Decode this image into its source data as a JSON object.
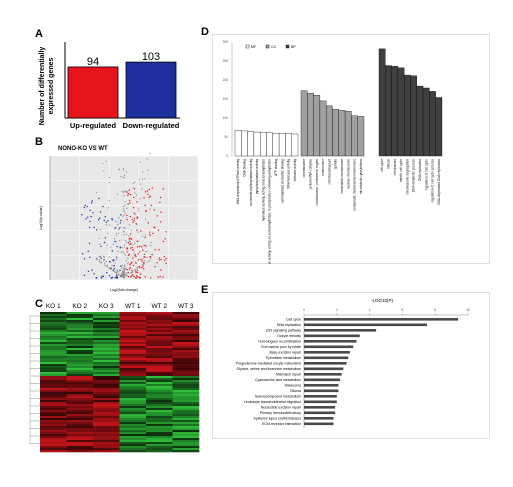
{
  "panels": {
    "a": {
      "label": "A"
    },
    "b": {
      "label": "B",
      "title": "NONO-KO VS WT"
    },
    "c": {
      "label": "C"
    },
    "d": {
      "label": "D"
    },
    "e": {
      "label": "E"
    }
  },
  "colors": {
    "up_red": "#e8141b",
    "down_blue": "#1e2fa0",
    "heat_green": "#2fbf3a",
    "heat_red": "#c8141b",
    "bar_white": "#ffffff",
    "bar_gray": "#a0a0a0",
    "bar_dark": "#404040",
    "e_bar": "#4a4a4a"
  },
  "chart_data": [
    {
      "id": "A",
      "type": "bar",
      "categories": [
        "Up-regulated",
        "Down-regulated"
      ],
      "values": [
        94,
        103
      ],
      "ylabel": "Number of differentially expressed genes",
      "value_labels": [
        "94",
        "103"
      ]
    },
    {
      "id": "B",
      "type": "scatter",
      "title": "NONO-KO VS WT",
      "xlabel": "Log2(fold change)",
      "ylabel": "Log10(p-value)"
    },
    {
      "id": "C",
      "type": "heatmap",
      "columns": [
        "KO 1",
        "KO 2",
        "KO 3",
        "WT 1",
        "WT 2",
        "WT 3"
      ]
    },
    {
      "id": "D",
      "type": "bar",
      "legend": [
        "MF",
        "CC",
        "BP"
      ],
      "y_ticks": [
        "0",
        "50",
        "100",
        "150",
        "200",
        "250",
        "300"
      ],
      "ylim": [
        0,
        300
      ],
      "groups": [
        {
          "name": "MF",
          "categories": [
            "DNA-dependent ATPase activity",
            "DNA binding",
            "nucleotide-triphosphatase activity",
            "pyrophosphatase activity",
            "hydrolase activity, acting on acid anhydrides",
            "hydrolase activity, acting on acid anhydrides, in phosphorus-containing anhydrides",
            "ATP binding",
            "carbohydrate derivative binding",
            "DNA helicase activity",
            "helicase activity"
          ],
          "values": [
            68,
            66,
            64,
            63,
            62,
            61,
            60,
            60,
            59,
            58
          ]
        },
        {
          "name": "CC",
          "categories": [
            "chromosome",
            "protein-DNA complex",
            "chromosome, centromeric region",
            "kinetochore",
            "chromosomal part",
            "spindle",
            "condensed chromosome",
            "nuclear chromosome",
            "condensed chromosome kinetochore",
            "microtubule cytoskeleton"
          ],
          "values": [
            172,
            165,
            160,
            145,
            132,
            123,
            120,
            118,
            106,
            104
          ]
        },
        {
          "name": "BP",
          "categories": [
            "cell cycle",
            "mitosis",
            "cell division",
            "mitotic cell cycle",
            "chromosome segregation",
            "DNA metabolic process",
            "DNA replication",
            "regulation of cell cycle",
            "regulation of cell cycle process",
            "DNA-dependent DNA replication"
          ],
          "values": [
            282,
            238,
            236,
            232,
            213,
            211,
            184,
            179,
            170,
            154
          ]
        }
      ]
    },
    {
      "id": "E",
      "type": "bar",
      "title": "-LOG10(P)",
      "x_ticks": [
        "0",
        "2",
        "4",
        "6",
        "8",
        "10"
      ],
      "xlim": [
        0,
        10
      ],
      "categories": [
        "Cell cycle",
        "DNA replication",
        "p53 signaling pathway",
        "Oocyte meiosis",
        "Homologous recombination",
        "One carbon pool by folate",
        "Base excision repair",
        "Pyrimidine metabolism",
        "Progesterone-mediated oocyte maturation",
        "Glycine, serine and threonine metabolism",
        "Mismatch repair",
        "Cyanoamino acid metabolism",
        "Melanoma",
        "Glioma",
        "Selenocompound metabolism",
        "Leukocyte transendothelial migration",
        "Nucleotide excision repair",
        "Primary immunodeficiency",
        "Systemic lupus erythematosus",
        "ECM-receptor interaction"
      ],
      "values": [
        9.4,
        7.5,
        4.4,
        3.4,
        3.2,
        3.0,
        2.8,
        2.7,
        2.6,
        2.4,
        2.3,
        2.2,
        2.1,
        2.1,
        2.0,
        2.0,
        1.9,
        1.9,
        1.8,
        1.8
      ]
    }
  ]
}
